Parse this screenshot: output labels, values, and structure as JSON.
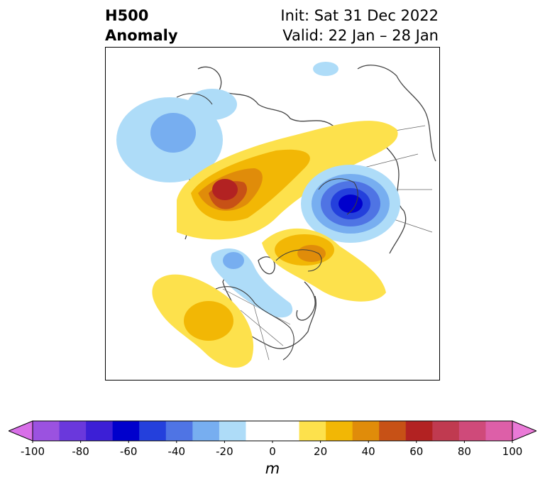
{
  "title": {
    "line1": "H500",
    "line2": "Anomaly",
    "init": "Init: Sat 31 Dec 2022",
    "valid": "Valid: 22 Jan – 28 Jan"
  },
  "colorbar": {
    "unit": "m",
    "min": -100,
    "max": 100,
    "step": 10,
    "tick_values": [
      -100,
      -80,
      -60,
      -40,
      -20,
      0,
      20,
      40,
      60,
      80,
      100
    ],
    "tick_labels": [
      "-100",
      "-80",
      "-60",
      "-40",
      "-20",
      "0",
      "20",
      "40",
      "60",
      "80",
      "100"
    ],
    "colors": [
      "#d86fe8",
      "#9b52e0",
      "#6a38dc",
      "#3c1fd6",
      "#0000cc",
      "#2440dc",
      "#4f74e4",
      "#77aef0",
      "#aedcf8",
      "#ffffff",
      "#ffffff",
      "#fde14c",
      "#f2b705",
      "#e08c0a",
      "#c75116",
      "#b22222",
      "#c03a50",
      "#cf4a7a",
      "#dd5fa8",
      "#ea7ad7"
    ],
    "extend": "both"
  },
  "map": {
    "projection": "polar-stereographic",
    "region": "North America / North Atlantic / Arctic"
  }
}
